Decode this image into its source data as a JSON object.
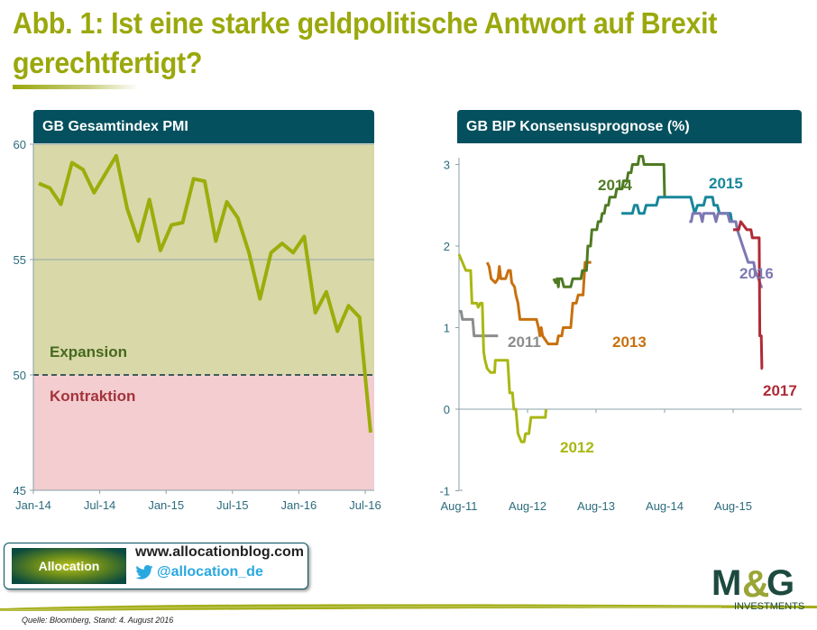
{
  "title": "Abb. 1: Ist eine starke geldpolitische Antwort auf Brexit gerechtfertigt?",
  "colors": {
    "title": "#9aa80b",
    "panel_header": "#04505e",
    "axis_text": "#2b6b7c",
    "expansion_bg": "#d8d8a9",
    "contraction_bg": "#f3cdd0",
    "pmi_line": "#9aad0a"
  },
  "chart_data": [
    {
      "type": "line",
      "title": "GB Gesamtindex PMI",
      "xlabel": "",
      "ylabel": "",
      "ylim": [
        45,
        60
      ],
      "yticks": [
        "60",
        "55",
        "50",
        "45"
      ],
      "xticks": [
        "Jan-14",
        "Jul-14",
        "Jan-15",
        "Jul-15",
        "Jan-16",
        "Jul-16"
      ],
      "grid": true,
      "threshold": 50,
      "annotations": [
        "Expansion",
        "Kontraktion"
      ],
      "x": [
        "Jan-14",
        "Feb-14",
        "Mar-14",
        "Apr-14",
        "May-14",
        "Jun-14",
        "Jul-14",
        "Aug-14",
        "Sep-14",
        "Oct-14",
        "Nov-14",
        "Dec-14",
        "Jan-15",
        "Feb-15",
        "Mar-15",
        "Apr-15",
        "May-15",
        "Jun-15",
        "Jul-15",
        "Aug-15",
        "Sep-15",
        "Oct-15",
        "Nov-15",
        "Dec-15",
        "Jan-16",
        "Feb-16",
        "Mar-16",
        "Apr-16",
        "May-16",
        "Jun-16",
        "Jul-16"
      ],
      "series": [
        {
          "name": "GB Gesamtindex PMI",
          "color": "#9aad0a",
          "values": [
            58.3,
            58.1,
            57.4,
            59.2,
            58.9,
            57.9,
            58.7,
            59.5,
            57.2,
            55.8,
            57.6,
            55.4,
            56.5,
            56.6,
            58.5,
            58.4,
            55.8,
            57.5,
            56.8,
            55.3,
            53.3,
            55.3,
            55.7,
            55.3,
            56.0,
            52.7,
            53.6,
            51.9,
            53.0,
            52.5,
            47.5
          ]
        }
      ]
    },
    {
      "type": "line",
      "title": "GB BIP Konsensusprognose (%)",
      "xlabel": "",
      "ylabel": "",
      "ylim": [
        -1,
        3
      ],
      "yticks": [
        "3",
        "2",
        "1",
        "0",
        "-1"
      ],
      "xticks": [
        "Aug-11",
        "Aug-12",
        "Aug-13",
        "Aug-14",
        "Aug-15"
      ],
      "x_unit": "years since Aug-11",
      "series": [
        {
          "name": "2011",
          "color": "#8c8c8c",
          "points": [
            [
              0,
              1.2
            ],
            [
              0.03,
              1.2
            ],
            [
              0.05,
              1.1
            ],
            [
              0.2,
              1.1
            ],
            [
              0.22,
              0.9
            ],
            [
              0.57,
              0.9
            ]
          ]
        },
        {
          "name": "2012",
          "color": "#a9b713",
          "points": [
            [
              0,
              1.9
            ],
            [
              0.05,
              1.8
            ],
            [
              0.1,
              1.7
            ],
            [
              0.17,
              1.7
            ],
            [
              0.19,
              1.3
            ],
            [
              0.26,
              1.3
            ],
            [
              0.28,
              1.25
            ],
            [
              0.31,
              1.3
            ],
            [
              0.34,
              1.3
            ],
            [
              0.36,
              0.7
            ],
            [
              0.38,
              0.6
            ],
            [
              0.41,
              0.5
            ],
            [
              0.46,
              0.45
            ],
            [
              0.52,
              0.45
            ],
            [
              0.53,
              0.6
            ],
            [
              0.71,
              0.6
            ],
            [
              0.74,
              0.2
            ],
            [
              0.78,
              0.2
            ],
            [
              0.8,
              0.0
            ],
            [
              0.83,
              0.0
            ],
            [
              0.86,
              -0.3
            ],
            [
              0.91,
              -0.4
            ],
            [
              0.95,
              -0.4
            ],
            [
              0.97,
              -0.3
            ],
            [
              1.02,
              -0.3
            ],
            [
              1.05,
              -0.1
            ],
            [
              1.2,
              -0.1
            ],
            [
              1.26,
              -0.1
            ],
            [
              1.27,
              0.0
            ]
          ]
        },
        {
          "name": "2013",
          "color": "#c8700e",
          "points": [
            [
              0.41,
              1.8
            ],
            [
              0.44,
              1.75
            ],
            [
              0.47,
              1.6
            ],
            [
              0.53,
              1.55
            ],
            [
              0.57,
              1.6
            ],
            [
              0.59,
              1.75
            ],
            [
              0.61,
              1.6
            ],
            [
              0.68,
              1.6
            ],
            [
              0.72,
              1.7
            ],
            [
              0.75,
              1.7
            ],
            [
              0.77,
              1.55
            ],
            [
              0.81,
              1.5
            ],
            [
              0.83,
              1.4
            ],
            [
              0.86,
              1.3
            ],
            [
              0.89,
              1.1
            ],
            [
              1.13,
              1.1
            ],
            [
              1.16,
              1.0
            ],
            [
              1.18,
              0.9
            ],
            [
              1.2,
              1.0
            ],
            [
              1.22,
              0.9
            ],
            [
              1.26,
              0.85
            ],
            [
              1.3,
              0.8
            ],
            [
              1.43,
              0.8
            ],
            [
              1.45,
              0.9
            ],
            [
              1.5,
              0.9
            ],
            [
              1.52,
              1.0
            ],
            [
              1.63,
              1.0
            ],
            [
              1.66,
              1.3
            ],
            [
              1.71,
              1.3
            ],
            [
              1.74,
              1.4
            ],
            [
              1.81,
              1.4
            ],
            [
              1.84,
              1.8
            ],
            [
              1.93,
              1.8
            ]
          ]
        },
        {
          "name": "2014",
          "color": "#4f7a23",
          "points": [
            [
              1.38,
              1.6
            ],
            [
              1.41,
              1.55
            ],
            [
              1.43,
              1.6
            ],
            [
              1.45,
              1.5
            ],
            [
              1.46,
              1.6
            ],
            [
              1.5,
              1.6
            ],
            [
              1.53,
              1.5
            ],
            [
              1.63,
              1.5
            ],
            [
              1.66,
              1.6
            ],
            [
              1.78,
              1.6
            ],
            [
              1.8,
              1.7
            ],
            [
              1.86,
              1.7
            ],
            [
              1.88,
              2.0
            ],
            [
              1.92,
              2.0
            ],
            [
              1.94,
              2.2
            ],
            [
              2.01,
              2.2
            ],
            [
              2.03,
              2.3
            ],
            [
              2.07,
              2.3
            ],
            [
              2.09,
              2.4
            ],
            [
              2.12,
              2.4
            ],
            [
              2.14,
              2.5
            ],
            [
              2.18,
              2.5
            ],
            [
              2.2,
              2.6
            ],
            [
              2.28,
              2.6
            ],
            [
              2.3,
              2.7
            ],
            [
              2.38,
              2.7
            ],
            [
              2.4,
              2.8
            ],
            [
              2.45,
              2.8
            ],
            [
              2.47,
              2.9
            ],
            [
              2.51,
              2.9
            ],
            [
              2.53,
              3.0
            ],
            [
              2.61,
              3.0
            ],
            [
              2.63,
              3.1
            ],
            [
              2.68,
              3.1
            ],
            [
              2.7,
              3.0
            ],
            [
              2.99,
              3.0
            ],
            [
              3.0,
              2.6
            ]
          ]
        },
        {
          "name": "2015",
          "color": "#17879a",
          "points": [
            [
              2.37,
              2.4
            ],
            [
              2.53,
              2.4
            ],
            [
              2.56,
              2.5
            ],
            [
              2.6,
              2.5
            ],
            [
              2.63,
              2.4
            ],
            [
              2.7,
              2.4
            ],
            [
              2.73,
              2.5
            ],
            [
              2.88,
              2.5
            ],
            [
              2.91,
              2.6
            ],
            [
              3.38,
              2.6
            ],
            [
              3.41,
              2.5
            ],
            [
              3.44,
              2.4
            ],
            [
              3.48,
              2.5
            ],
            [
              3.57,
              2.5
            ],
            [
              3.6,
              2.6
            ],
            [
              3.7,
              2.6
            ],
            [
              3.72,
              2.5
            ],
            [
              3.77,
              2.5
            ],
            [
              3.8,
              2.4
            ],
            [
              3.96,
              2.4
            ],
            [
              3.98,
              2.3
            ]
          ]
        },
        {
          "name": "2016",
          "color": "#7d78b3",
          "points": [
            [
              3.36,
              2.3
            ],
            [
              3.39,
              2.3
            ],
            [
              3.41,
              2.4
            ],
            [
              3.52,
              2.4
            ],
            [
              3.55,
              2.3
            ],
            [
              3.57,
              2.4
            ],
            [
              3.72,
              2.4
            ],
            [
              3.75,
              2.3
            ],
            [
              3.78,
              2.4
            ],
            [
              3.92,
              2.4
            ],
            [
              3.95,
              2.3
            ],
            [
              4.04,
              2.3
            ],
            [
              4.06,
              2.2
            ],
            [
              4.1,
              2.1
            ],
            [
              4.14,
              2.0
            ],
            [
              4.18,
              1.9
            ],
            [
              4.22,
              1.8
            ],
            [
              4.3,
              1.8
            ],
            [
              4.32,
              1.7
            ],
            [
              4.37,
              1.6
            ],
            [
              4.41,
              1.5
            ],
            [
              4.43,
              1.5
            ]
          ]
        },
        {
          "name": "2017",
          "color": "#b02a35",
          "points": [
            [
              4.0,
              2.2
            ],
            [
              4.08,
              2.2
            ],
            [
              4.11,
              2.3
            ],
            [
              4.2,
              2.2
            ],
            [
              4.26,
              2.2
            ],
            [
              4.28,
              2.1
            ],
            [
              4.38,
              2.1
            ],
            [
              4.39,
              0.9
            ],
            [
              4.41,
              0.9
            ],
            [
              4.42,
              0.5
            ],
            [
              4.43,
              0.5
            ]
          ]
        }
      ]
    }
  ],
  "left_panel": {
    "header": "GB Gesamtindex PMI",
    "expansion_label": "Expansion",
    "contraction_label": "Kontraktion"
  },
  "right_panel": {
    "header": "GB BIP Konsensusprognose (%)"
  },
  "blog": {
    "logo_text": "Allocation",
    "url": "www.allocationblog.com",
    "twitter_handle": "@allocation_de",
    "twitter_icon": "twitter-bird-icon"
  },
  "brand": {
    "logo_text": "M&G",
    "logo_subtext": "INVESTMENTS"
  },
  "footer": {
    "source": "Quelle: Bloomberg,  Stand: 4. August 2016"
  }
}
